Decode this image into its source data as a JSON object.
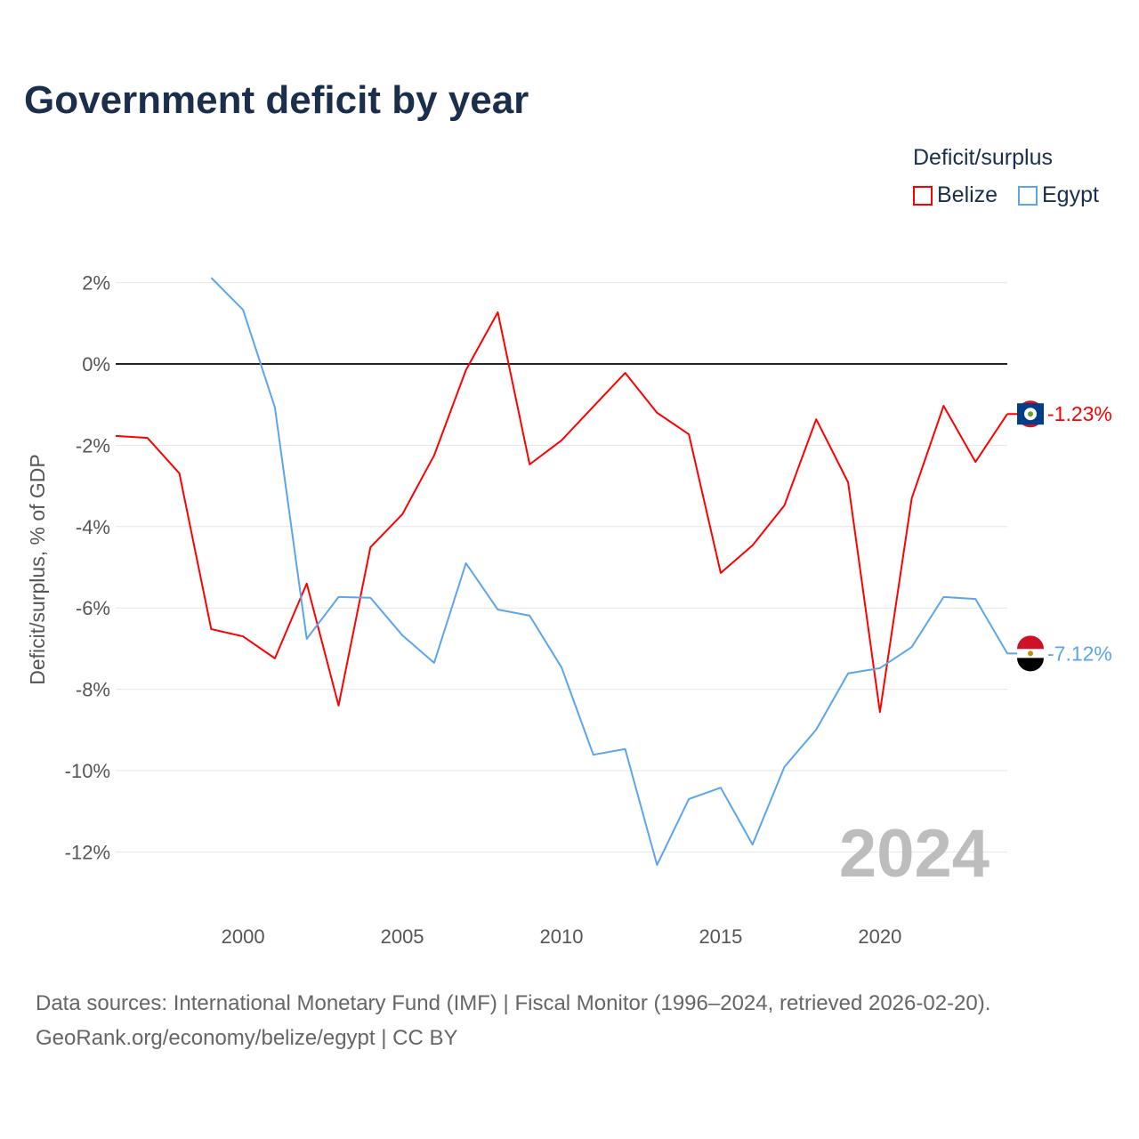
{
  "title": "Government deficit by year",
  "legend": {
    "title": "Deficit/surplus",
    "items": [
      {
        "name": "Belize",
        "color": "#ff0000"
      },
      {
        "name": "Egypt",
        "color": "#5aa5ec"
      }
    ]
  },
  "footer": {
    "line1": "Data sources: International Monetary Fund (IMF) | Fiscal Monitor (1996–2024, retrieved 2026-02-20).",
    "line2": "GeoRank.org/economy/belize/egypt | CC BY"
  },
  "chart_data": {
    "type": "line",
    "title": "Government deficit by year",
    "ylabel": "Deficit/surplus, % of GDP",
    "xlabel": "",
    "xlim": [
      1996,
      2024
    ],
    "ylim": [
      -13,
      2.5
    ],
    "xticks": [
      2000,
      2005,
      2010,
      2015,
      2020
    ],
    "yticks": [
      2,
      0,
      -2,
      -4,
      -6,
      -8,
      -10,
      -12
    ],
    "ytick_labels": [
      "2%",
      "0%",
      "-2%",
      "-4%",
      "-6%",
      "-8%",
      "-10%",
      "-12%"
    ],
    "watermark_year": "2024",
    "series": [
      {
        "name": "Belize",
        "color": "#ff0000",
        "end_label": "-1.23%",
        "x_start": 1996,
        "values": [
          -1.77,
          -1.82,
          -2.69,
          -6.52,
          -6.7,
          -7.24,
          -5.4,
          -8.4,
          -4.51,
          -3.7,
          -2.25,
          -0.15,
          1.27,
          -2.47,
          -1.88,
          -1.05,
          -0.22,
          -1.2,
          -1.73,
          -5.14,
          -4.46,
          -3.48,
          -1.36,
          -2.91,
          -8.56,
          -3.3,
          -1.03,
          -2.41,
          -1.23
        ]
      },
      {
        "name": "Egypt",
        "color": "#5aa5ec",
        "end_label": "-7.12%",
        "x_start": 1999,
        "values": [
          2.12,
          1.33,
          -1.07,
          -6.76,
          -5.73,
          -5.75,
          -6.67,
          -7.35,
          -4.9,
          -6.04,
          -6.19,
          -7.46,
          -9.61,
          -9.47,
          -12.32,
          -10.7,
          -10.42,
          -11.82,
          -9.91,
          -8.99,
          -7.61,
          -7.48,
          -6.96,
          -5.73,
          -5.78,
          -7.12
        ]
      }
    ]
  }
}
